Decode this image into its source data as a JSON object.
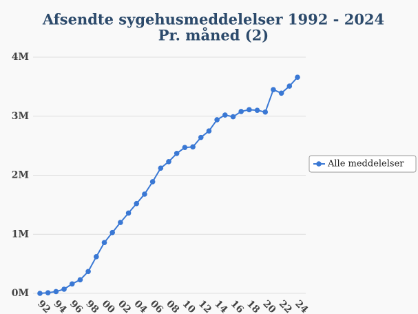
{
  "chart_data": {
    "type": "line",
    "title": [
      "Afsendte sygehusmeddelelser 1992 - 2024",
      "Pr. måned (2)"
    ],
    "categories": [
      "92",
      null,
      "94",
      null,
      "96",
      null,
      "98",
      null,
      "00",
      null,
      "02",
      null,
      "04",
      null,
      "06",
      null,
      "08",
      null,
      "10",
      null,
      "12",
      null,
      "14",
      null,
      "16",
      null,
      "18",
      null,
      "20",
      null,
      "22",
      null,
      "24"
    ],
    "series": [
      {
        "name": "Alle meddelelser",
        "color": "#3a78d4",
        "values": [
          0.0,
          0.01,
          0.03,
          0.07,
          0.16,
          0.23,
          0.37,
          0.62,
          0.86,
          1.03,
          1.2,
          1.36,
          1.52,
          1.68,
          1.89,
          2.12,
          2.23,
          2.37,
          2.47,
          2.48,
          2.64,
          2.75,
          2.94,
          3.02,
          2.99,
          3.08,
          3.11,
          3.1,
          3.07,
          3.45,
          3.39,
          3.51,
          3.66
        ]
      }
    ],
    "ylim": [
      0,
      4
    ],
    "yticks": [
      {
        "value": 0,
        "label": "0M"
      },
      {
        "value": 1,
        "label": "1M"
      },
      {
        "value": 2,
        "label": "2M"
      },
      {
        "value": 3,
        "label": "3M"
      },
      {
        "value": 4,
        "label": "4M"
      }
    ],
    "grid": true,
    "legend": "right"
  }
}
